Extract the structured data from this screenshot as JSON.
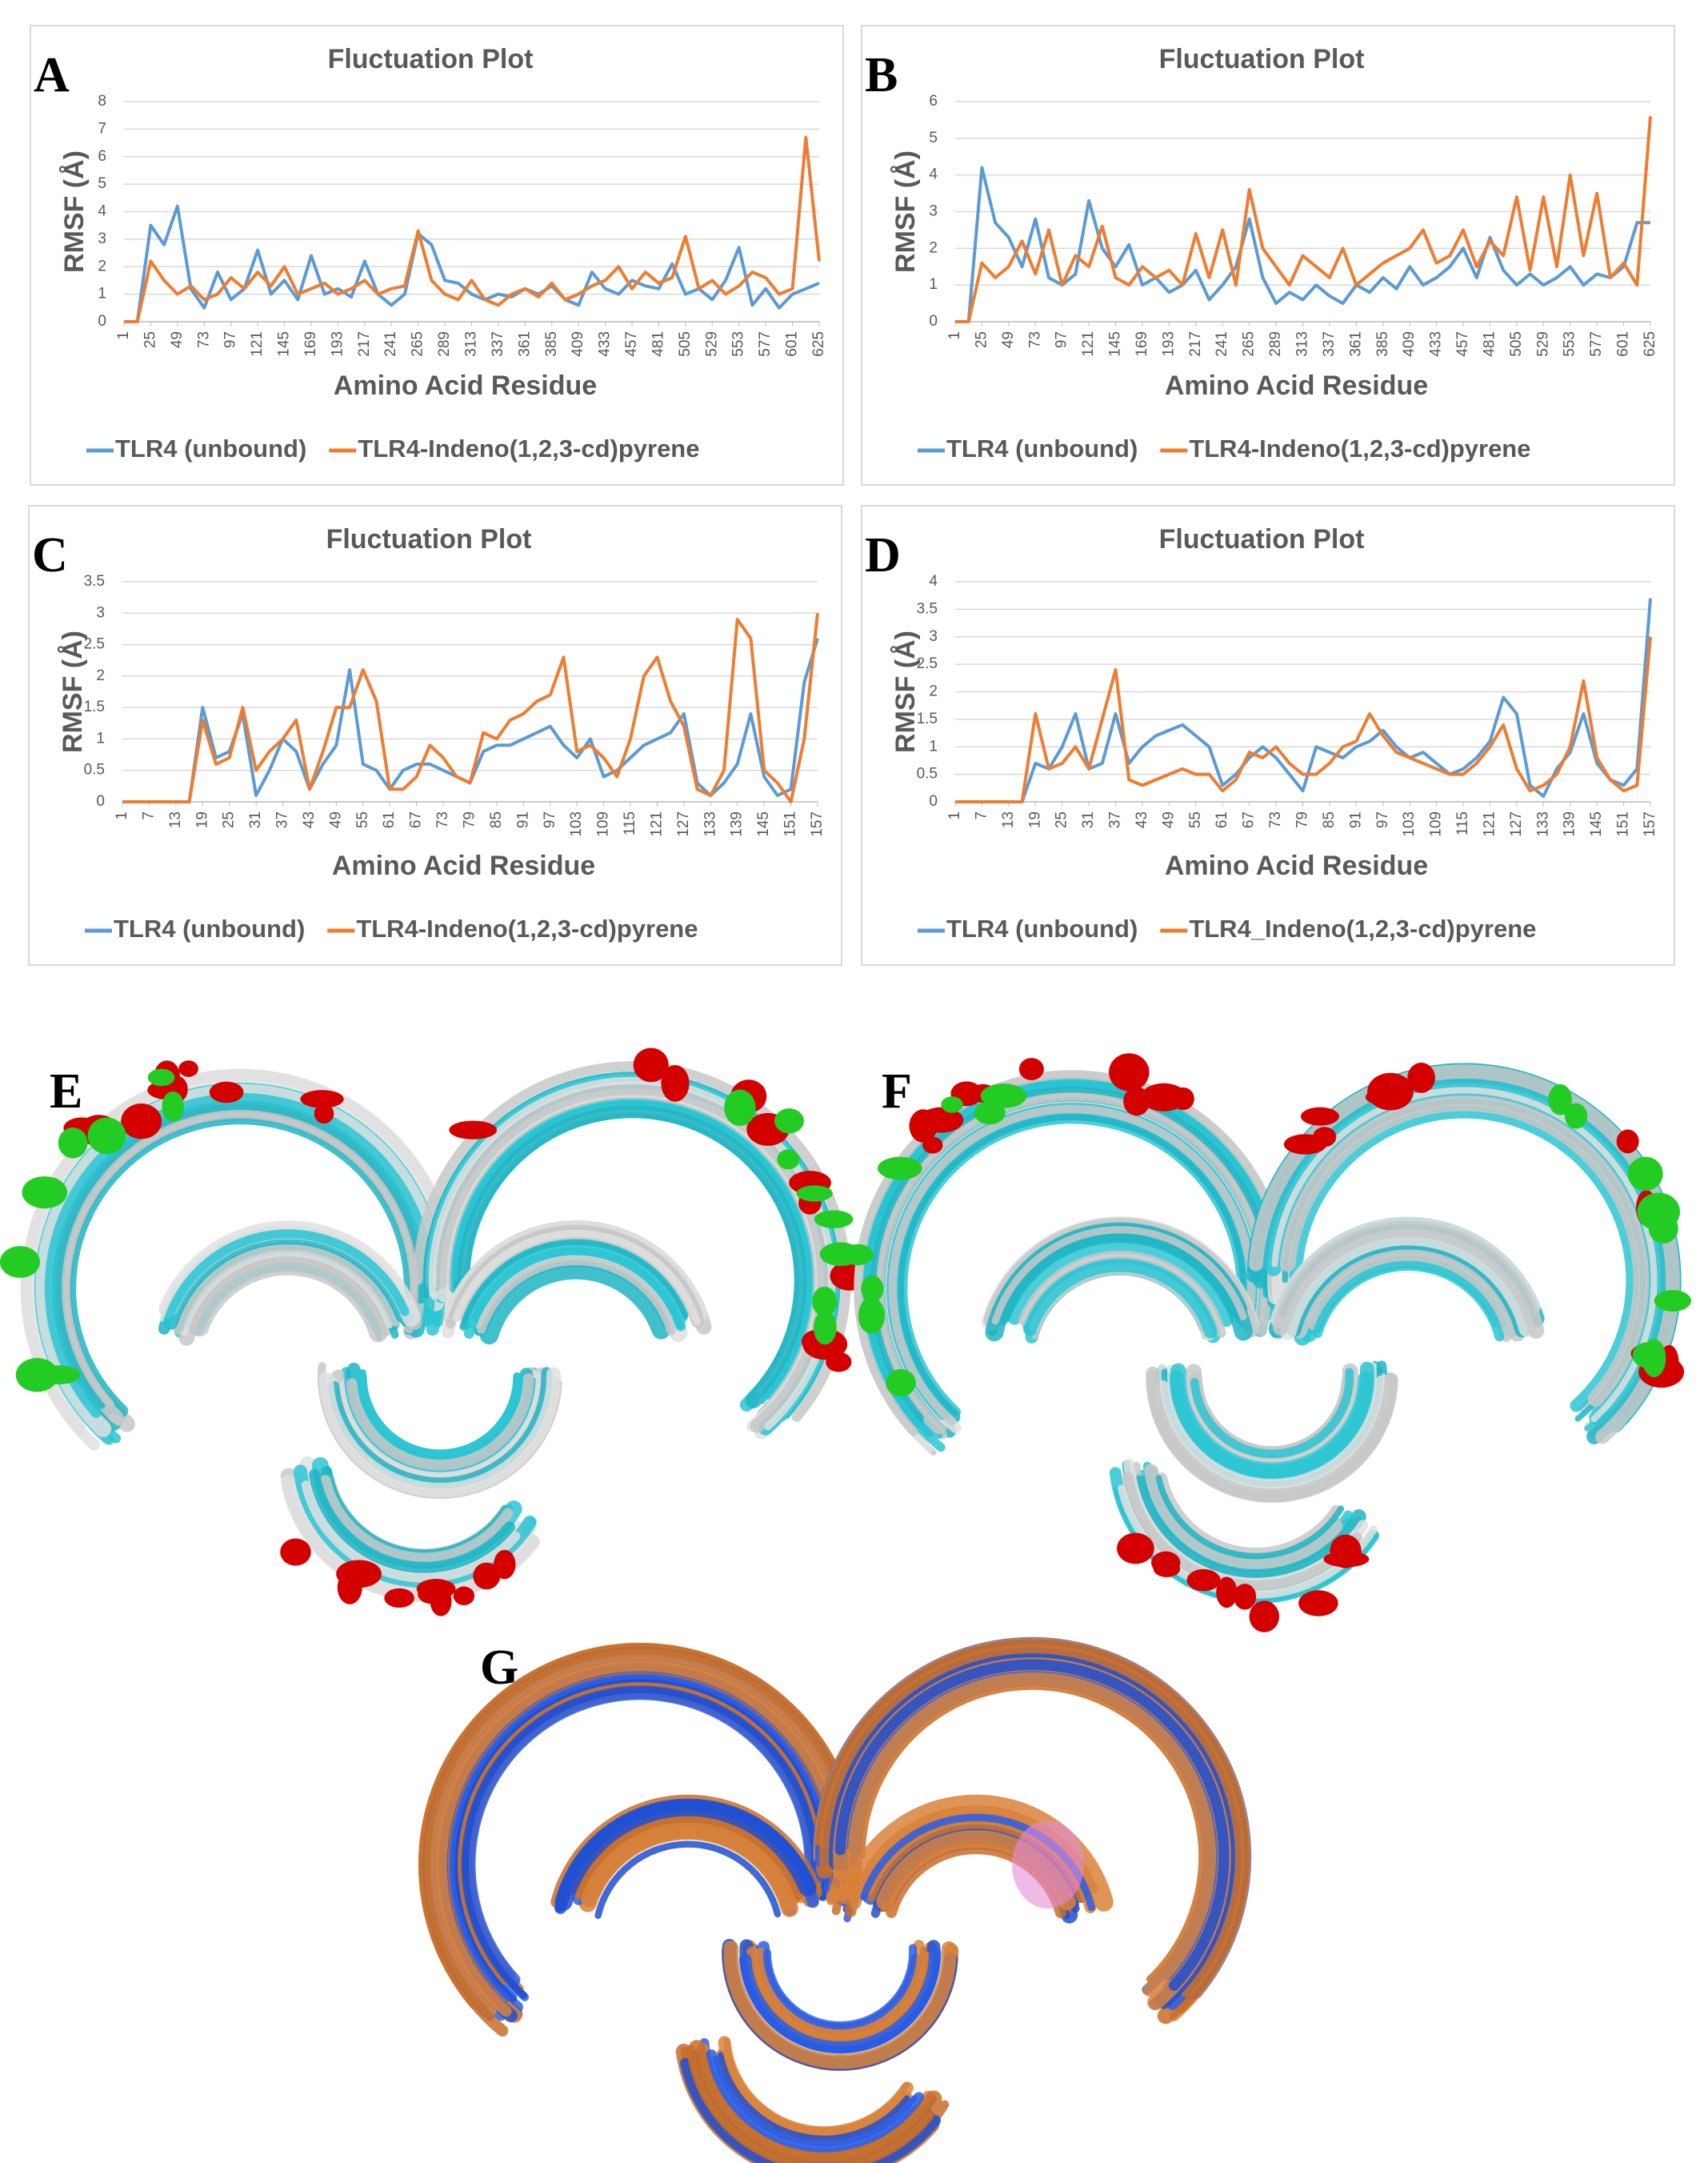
{
  "chart_data": [
    {
      "panel": "A",
      "type": "line",
      "title": "Fluctuation Plot",
      "x_label": "Amino Acid Residue",
      "y_label": "RMSF (Å)",
      "x": [
        1,
        13,
        25,
        37,
        49,
        61,
        73,
        85,
        97,
        109,
        121,
        133,
        145,
        157,
        169,
        181,
        193,
        205,
        217,
        229,
        241,
        253,
        265,
        277,
        289,
        301,
        313,
        325,
        337,
        349,
        361,
        373,
        385,
        397,
        409,
        421,
        433,
        445,
        457,
        469,
        481,
        493,
        505,
        517,
        529,
        541,
        553,
        565,
        577,
        589,
        601,
        613,
        625
      ],
      "xlim": [
        1,
        625
      ],
      "xticks": [
        1,
        25,
        49,
        73,
        97,
        121,
        145,
        169,
        193,
        217,
        241,
        265,
        289,
        313,
        337,
        361,
        385,
        409,
        433,
        457,
        481,
        505,
        529,
        553,
        577,
        601,
        625
      ],
      "ylim": [
        0,
        8
      ],
      "yticks": [
        0,
        1,
        2,
        3,
        4,
        5,
        6,
        7,
        8
      ],
      "grid": true,
      "legend": "bottom",
      "series": [
        {
          "name": "TLR4 (unbound)",
          "color": "#5b9bd5",
          "values": [
            0,
            0,
            3.5,
            2.8,
            4.2,
            1.2,
            0.5,
            1.8,
            0.8,
            1.2,
            2.6,
            1.0,
            1.5,
            0.8,
            2.4,
            1.0,
            1.2,
            0.9,
            2.2,
            1.0,
            0.6,
            1.0,
            3.2,
            2.8,
            1.5,
            1.4,
            1.0,
            0.8,
            1.0,
            0.9,
            1.2,
            1.0,
            1.3,
            0.8,
            0.6,
            1.8,
            1.2,
            1.0,
            1.5,
            1.3,
            1.2,
            2.1,
            1.0,
            1.2,
            0.8,
            1.5,
            2.7,
            0.6,
            1.2,
            0.5,
            1.0,
            1.2,
            1.4
          ]
        },
        {
          "name": "TLR4-Indeno(1,2,3-cd)pyrene",
          "color": "#ed7d31",
          "values": [
            0,
            0,
            2.2,
            1.5,
            1.0,
            1.3,
            0.8,
            1.0,
            1.6,
            1.2,
            1.8,
            1.3,
            2.0,
            1.0,
            1.2,
            1.4,
            1.0,
            1.2,
            1.5,
            1.0,
            1.2,
            1.3,
            3.3,
            1.5,
            1.0,
            0.8,
            1.5,
            0.8,
            0.6,
            1.0,
            1.2,
            0.9,
            1.4,
            0.8,
            1.0,
            1.3,
            1.5,
            2.0,
            1.2,
            1.8,
            1.4,
            1.6,
            3.1,
            1.2,
            1.5,
            1.0,
            1.3,
            1.8,
            1.6,
            1.0,
            1.2,
            6.7,
            2.2
          ]
        }
      ]
    },
    {
      "panel": "B",
      "type": "line",
      "title": "Fluctuation Plot",
      "x_label": "Amino Acid Residue",
      "y_label": "RMSF (Å)",
      "x": [
        1,
        13,
        25,
        37,
        49,
        61,
        73,
        85,
        97,
        109,
        121,
        133,
        145,
        157,
        169,
        181,
        193,
        205,
        217,
        229,
        241,
        253,
        265,
        277,
        289,
        301,
        313,
        325,
        337,
        349,
        361,
        373,
        385,
        397,
        409,
        421,
        433,
        445,
        457,
        469,
        481,
        493,
        505,
        517,
        529,
        541,
        553,
        565,
        577,
        589,
        601,
        613,
        625
      ],
      "xlim": [
        1,
        625
      ],
      "xticks": [
        1,
        25,
        49,
        73,
        97,
        121,
        145,
        169,
        193,
        217,
        241,
        265,
        289,
        313,
        337,
        361,
        385,
        409,
        433,
        457,
        481,
        505,
        529,
        553,
        577,
        601,
        625
      ],
      "ylim": [
        0,
        6
      ],
      "yticks": [
        0,
        1,
        2,
        3,
        4,
        5,
        6
      ],
      "grid": true,
      "legend": "bottom",
      "series": [
        {
          "name": "TLR4 (unbound)",
          "color": "#5b9bd5",
          "values": [
            0,
            0,
            4.2,
            2.7,
            2.3,
            1.5,
            2.8,
            1.2,
            1.0,
            1.3,
            3.3,
            2.0,
            1.5,
            2.1,
            1.0,
            1.2,
            0.8,
            1.0,
            1.4,
            0.6,
            1.0,
            1.5,
            2.8,
            1.2,
            0.5,
            0.8,
            0.6,
            1.0,
            0.7,
            0.5,
            1.0,
            0.8,
            1.2,
            0.9,
            1.5,
            1.0,
            1.2,
            1.5,
            2.0,
            1.2,
            2.3,
            1.4,
            1.0,
            1.3,
            1.0,
            1.2,
            1.5,
            1.0,
            1.3,
            1.2,
            1.5,
            2.7,
            2.7
          ]
        },
        {
          "name": "TLR4-Indeno(1,2,3-cd)pyrene",
          "color": "#ed7d31",
          "values": [
            0,
            0,
            1.6,
            1.2,
            1.5,
            2.2,
            1.3,
            2.5,
            1.0,
            1.8,
            1.5,
            2.6,
            1.2,
            1.0,
            1.5,
            1.2,
            1.4,
            1.0,
            2.4,
            1.2,
            2.5,
            1.0,
            3.6,
            2.0,
            1.5,
            1.0,
            1.8,
            1.5,
            1.2,
            2.0,
            1.0,
            1.3,
            1.6,
            1.8,
            2.0,
            2.5,
            1.6,
            1.8,
            2.5,
            1.5,
            2.2,
            1.8,
            3.4,
            1.4,
            3.4,
            1.5,
            4.0,
            1.8,
            3.5,
            1.2,
            1.6,
            1.0,
            5.6
          ]
        }
      ]
    },
    {
      "panel": "C",
      "type": "line",
      "title": "Fluctuation Plot",
      "x_label": "Amino Acid Residue",
      "y_label": "RMSF (Å)",
      "x": [
        1,
        4,
        7,
        10,
        13,
        16,
        19,
        22,
        25,
        28,
        31,
        34,
        37,
        40,
        43,
        46,
        49,
        52,
        55,
        58,
        61,
        64,
        67,
        70,
        73,
        76,
        79,
        82,
        85,
        88,
        91,
        94,
        97,
        100,
        103,
        106,
        109,
        112,
        115,
        118,
        121,
        124,
        127,
        130,
        133,
        136,
        139,
        142,
        145,
        148,
        151,
        154,
        157
      ],
      "xlim": [
        1,
        157
      ],
      "xticks": [
        1,
        7,
        13,
        19,
        25,
        31,
        37,
        43,
        49,
        55,
        61,
        67,
        73,
        79,
        85,
        91,
        97,
        103,
        109,
        115,
        121,
        127,
        133,
        139,
        145,
        151,
        157
      ],
      "ylim": [
        0,
        3.5
      ],
      "yticks": [
        0,
        0.5,
        1,
        1.5,
        2,
        2.5,
        3,
        3.5
      ],
      "grid": true,
      "legend": "bottom",
      "series": [
        {
          "name": "TLR4 (unbound)",
          "color": "#5b9bd5",
          "values": [
            0,
            0,
            0,
            0,
            0,
            0,
            1.5,
            0.7,
            0.8,
            1.4,
            0.1,
            0.5,
            1.0,
            0.8,
            0.2,
            0.6,
            0.9,
            2.1,
            0.6,
            0.5,
            0.2,
            0.5,
            0.6,
            0.6,
            0.5,
            0.4,
            0.3,
            0.8,
            0.9,
            0.9,
            1.0,
            1.1,
            1.2,
            0.9,
            0.7,
            1.0,
            0.4,
            0.5,
            0.7,
            0.9,
            1.0,
            1.1,
            1.4,
            0.3,
            0.1,
            0.3,
            0.6,
            1.4,
            0.4,
            0.1,
            0.2,
            1.9,
            2.6
          ]
        },
        {
          "name": "TLR4-Indeno(1,2,3-cd)pyrene",
          "color": "#ed7d31",
          "values": [
            0,
            0,
            0,
            0,
            0,
            0,
            1.3,
            0.6,
            0.7,
            1.5,
            0.5,
            0.8,
            1.0,
            1.3,
            0.2,
            0.8,
            1.5,
            1.5,
            2.1,
            1.6,
            0.2,
            0.2,
            0.4,
            0.9,
            0.7,
            0.4,
            0.3,
            1.1,
            1.0,
            1.3,
            1.4,
            1.6,
            1.7,
            2.3,
            0.8,
            0.9,
            0.7,
            0.4,
            1.0,
            2.0,
            2.3,
            1.6,
            1.2,
            0.2,
            0.1,
            0.5,
            2.9,
            2.6,
            0.5,
            0.3,
            0,
            1.0,
            3.0
          ]
        }
      ]
    },
    {
      "panel": "D",
      "type": "line",
      "title": "Fluctuation Plot",
      "x_label": "Amino Acid Residue",
      "y_label": "RMSF (Å)",
      "x": [
        1,
        4,
        7,
        10,
        13,
        16,
        19,
        22,
        25,
        28,
        31,
        34,
        37,
        40,
        43,
        46,
        49,
        52,
        55,
        58,
        61,
        64,
        67,
        70,
        73,
        76,
        79,
        82,
        85,
        88,
        91,
        94,
        97,
        100,
        103,
        106,
        109,
        112,
        115,
        118,
        121,
        124,
        127,
        130,
        133,
        136,
        139,
        142,
        145,
        148,
        151,
        154,
        157
      ],
      "xlim": [
        1,
        157
      ],
      "xticks": [
        1,
        7,
        13,
        19,
        25,
        31,
        37,
        43,
        49,
        55,
        61,
        67,
        73,
        79,
        85,
        91,
        97,
        103,
        109,
        115,
        121,
        127,
        133,
        139,
        145,
        151,
        157
      ],
      "ylim": [
        0,
        4
      ],
      "yticks": [
        0,
        0.5,
        1,
        1.5,
        2,
        2.5,
        3,
        3.5,
        4
      ],
      "grid": true,
      "legend": "bottom",
      "series": [
        {
          "name": "TLR4 (unbound)",
          "color": "#5b9bd5",
          "values": [
            0,
            0,
            0,
            0,
            0,
            0,
            0.7,
            0.6,
            1.0,
            1.6,
            0.6,
            0.7,
            1.6,
            0.7,
            1.0,
            1.2,
            1.3,
            1.4,
            1.2,
            1.0,
            0.3,
            0.5,
            0.8,
            1.0,
            0.8,
            0.5,
            0.2,
            1.0,
            0.9,
            0.8,
            1.0,
            1.1,
            1.3,
            1.0,
            0.8,
            0.9,
            0.7,
            0.5,
            0.6,
            0.8,
            1.1,
            1.9,
            1.6,
            0.3,
            0.1,
            0.6,
            0.9,
            1.6,
            0.7,
            0.4,
            0.3,
            0.6,
            3.7
          ]
        },
        {
          "name": "TLR4_Indeno(1,2,3-cd)pyrene",
          "color": "#ed7d31",
          "values": [
            0,
            0,
            0,
            0,
            0,
            0,
            1.6,
            0.6,
            0.7,
            1.0,
            0.6,
            1.5,
            2.4,
            0.4,
            0.3,
            0.4,
            0.5,
            0.6,
            0.5,
            0.5,
            0.2,
            0.4,
            0.9,
            0.8,
            1.0,
            0.7,
            0.5,
            0.5,
            0.7,
            1.0,
            1.1,
            1.6,
            1.2,
            0.9,
            0.8,
            0.7,
            0.6,
            0.5,
            0.5,
            0.7,
            1.0,
            1.4,
            0.6,
            0.2,
            0.3,
            0.5,
            1.0,
            2.2,
            0.8,
            0.4,
            0.2,
            0.3,
            3.0
          ]
        }
      ]
    }
  ],
  "figures": [
    {
      "panel": "E"
    },
    {
      "panel": "F"
    },
    {
      "panel": "G"
    }
  ]
}
